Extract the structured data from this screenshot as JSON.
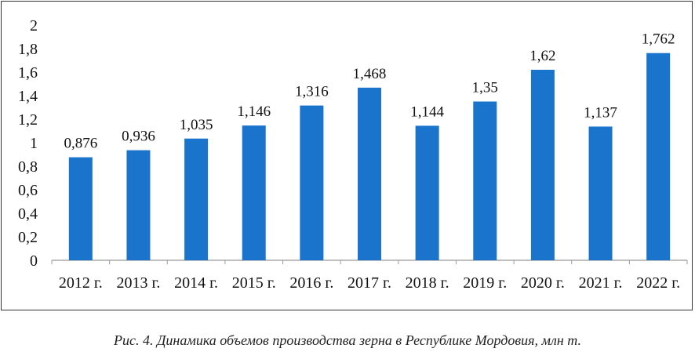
{
  "chart_data": {
    "type": "bar",
    "categories": [
      "2012 г.",
      "2013 г.",
      "2014 г.",
      "2015 г.",
      "2016 г.",
      "2017 г.",
      "2018 г.",
      "2019 г.",
      "2020 г.",
      "2021 г.",
      "2022 г."
    ],
    "values": [
      0.876,
      0.936,
      1.035,
      1.146,
      1.316,
      1.468,
      1.144,
      1.35,
      1.62,
      1.137,
      1.762
    ],
    "data_labels": [
      "0,876",
      "0,936",
      "1,035",
      "1,146",
      "1,316",
      "1,468",
      "1,144",
      "1,35",
      "1,62",
      "1,137",
      "1,762"
    ],
    "yticks": [
      "0",
      "0,2",
      "0,4",
      "0,6",
      "0,8",
      "1",
      "1,2",
      "1,4",
      "1,6",
      "1,8",
      "2"
    ],
    "ylim": [
      0,
      2
    ],
    "grid": false,
    "legend": "none",
    "bar_color": "#1a74cc",
    "title": "",
    "xlabel": "",
    "ylabel": ""
  },
  "caption": "Рис. 4. Динамика объемов производства зерна в Республике Мордовия, млн т."
}
